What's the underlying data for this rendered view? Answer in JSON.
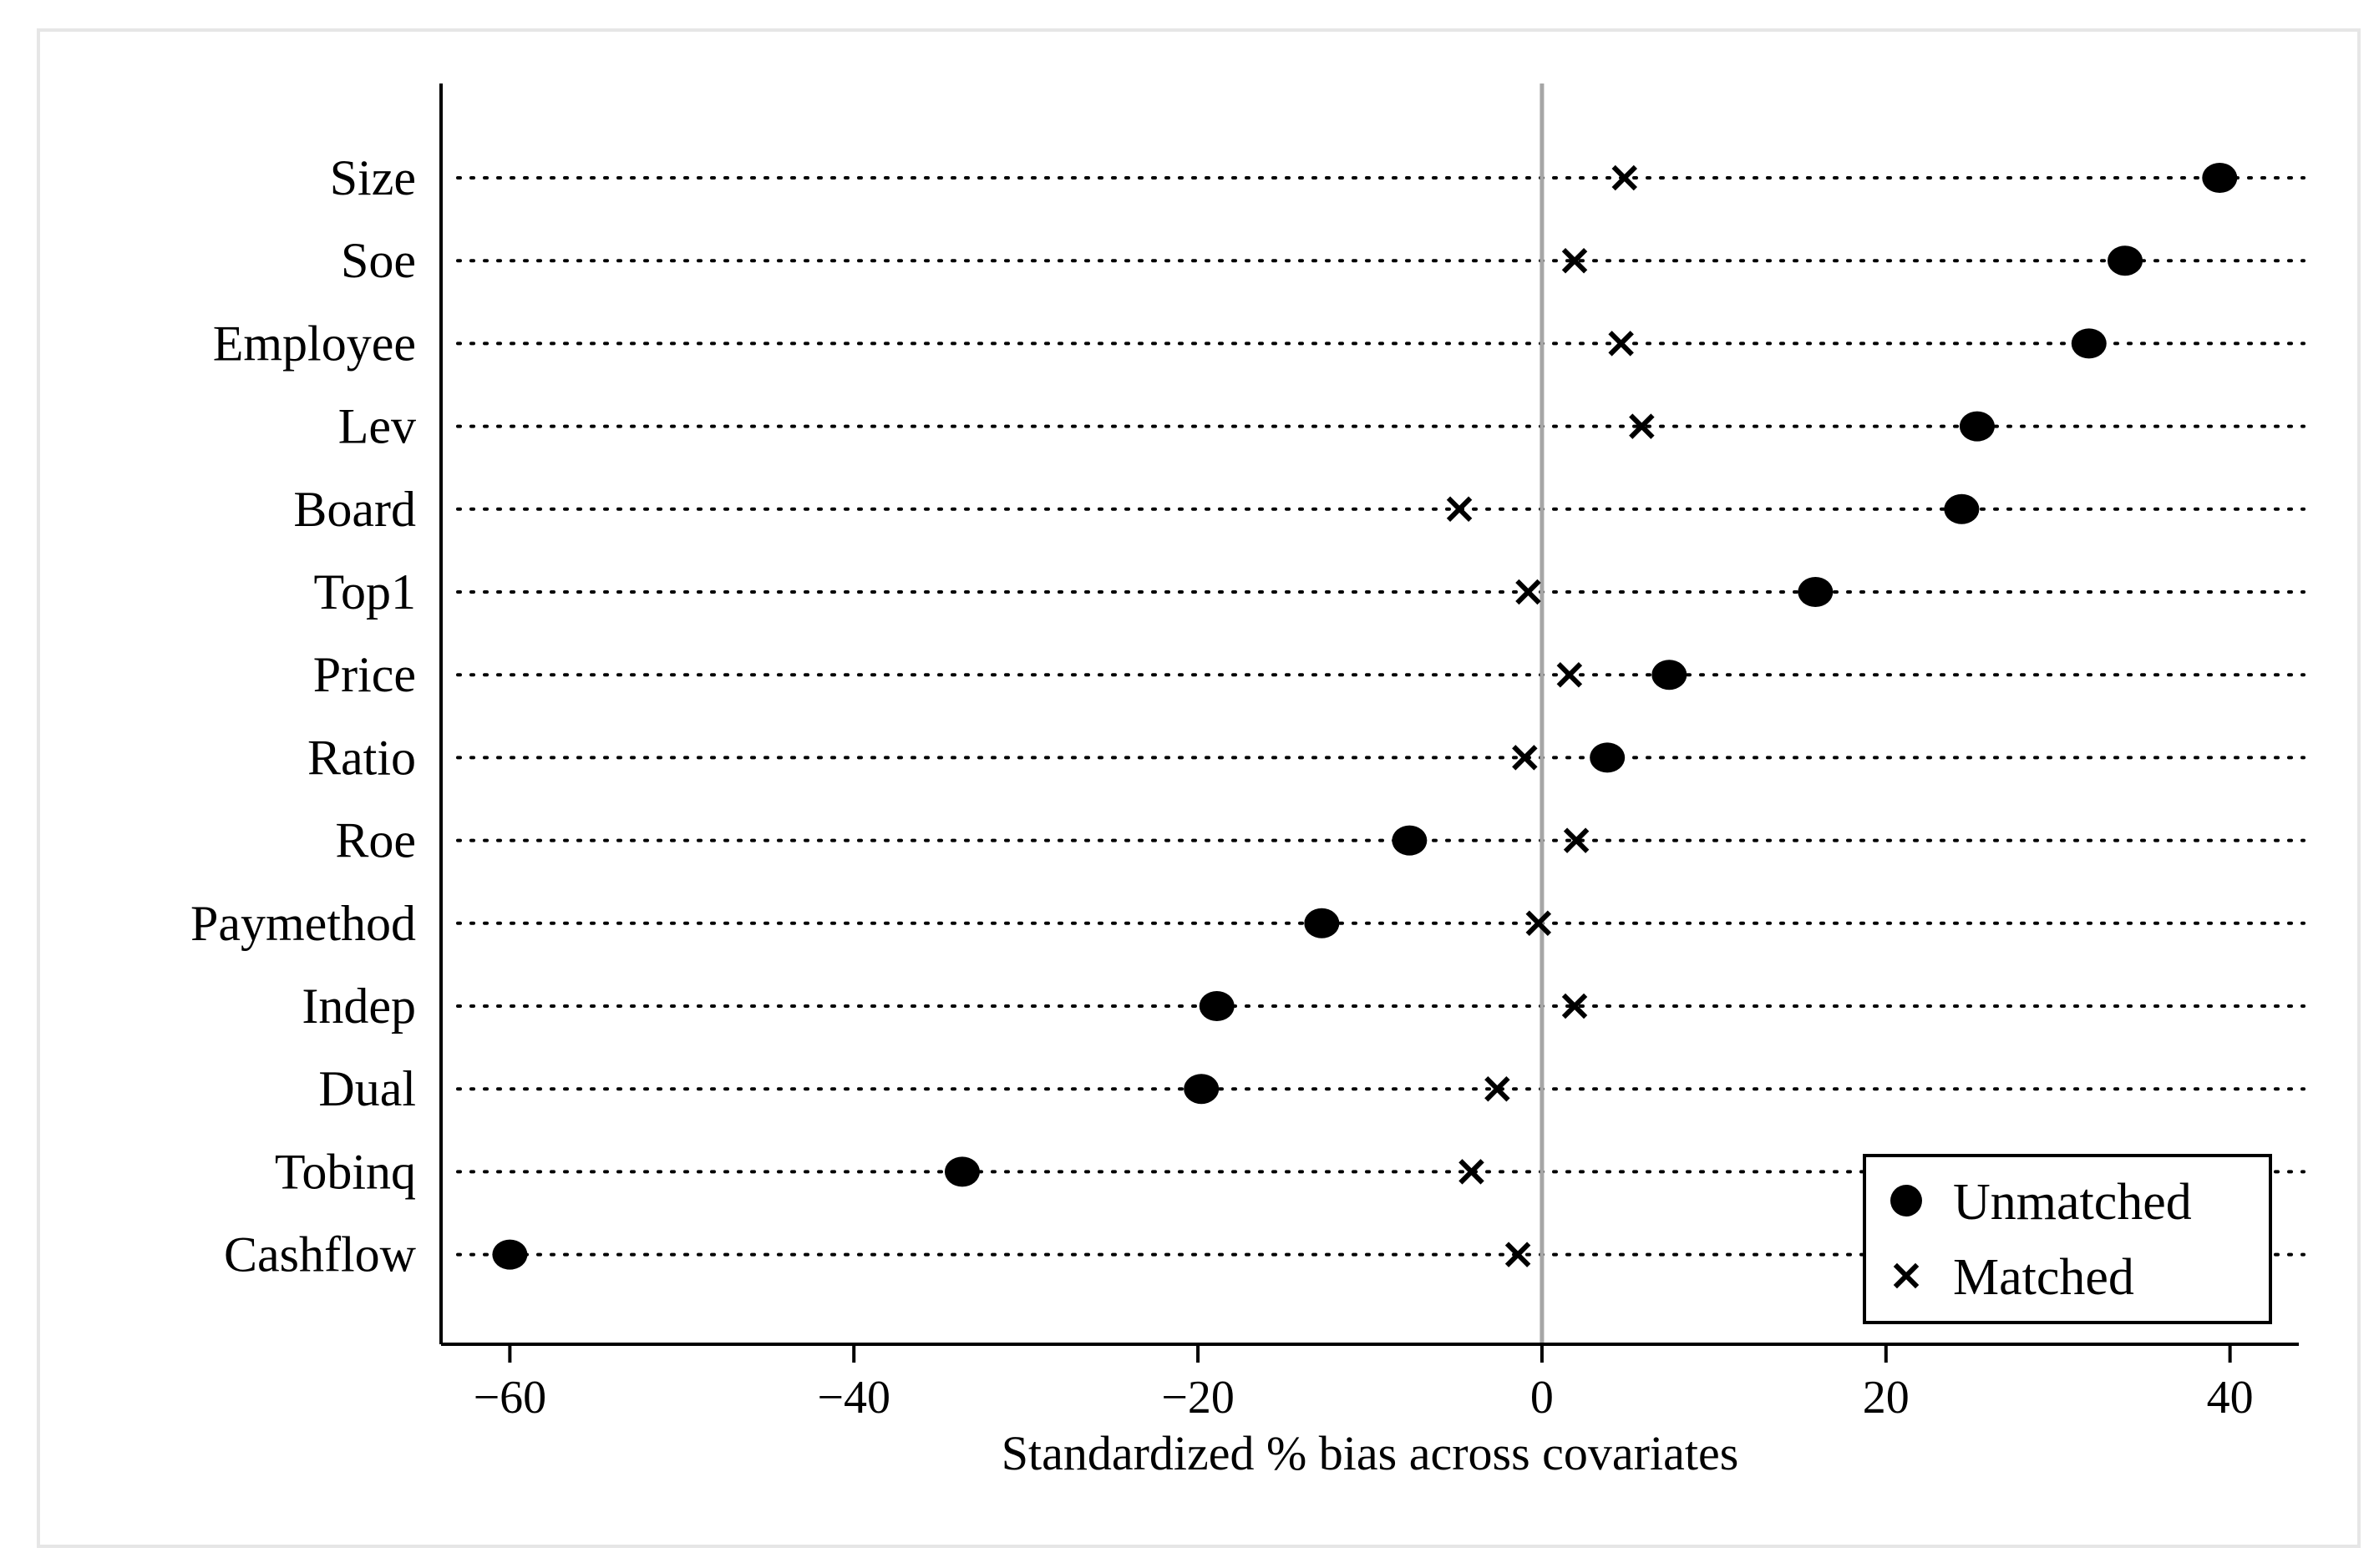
{
  "chart_data": {
    "type": "scatter",
    "orientation": "horizontal-dot-plot",
    "xlabel": "Standardized % bias across covariates",
    "ylabel": "",
    "xlim": [
      -64,
      44
    ],
    "x_ticks": [
      -60,
      -40,
      -20,
      0,
      20,
      40
    ],
    "x_tick_labels": [
      "−60",
      "−40",
      "−20",
      "0",
      "20",
      "40"
    ],
    "reference_line": 0,
    "categories": [
      "Size",
      "Soe",
      "Employee",
      "Lev",
      "Board",
      "Top1",
      "Price",
      "Ratio",
      "Roe",
      "Paymethod",
      "Indep",
      "Dual",
      "Tobinq",
      "Cashflow"
    ],
    "series": [
      {
        "name": "Unmatched",
        "marker": "circle",
        "values": [
          39.4,
          33.9,
          31.8,
          25.3,
          24.4,
          15.9,
          7.4,
          3.8,
          -7.7,
          -12.8,
          -18.9,
          -19.8,
          -33.7,
          -60.0
        ]
      },
      {
        "name": "Matched",
        "marker": "x",
        "values": [
          4.8,
          1.9,
          4.6,
          5.8,
          -4.8,
          -0.8,
          1.6,
          -1.0,
          2.0,
          -0.2,
          1.9,
          -2.6,
          -4.1,
          -1.4
        ]
      }
    ],
    "legend": {
      "position": "bottom-right",
      "entries": [
        "Unmatched",
        "Matched"
      ]
    },
    "grid": "dotted horizontal lines per category"
  }
}
